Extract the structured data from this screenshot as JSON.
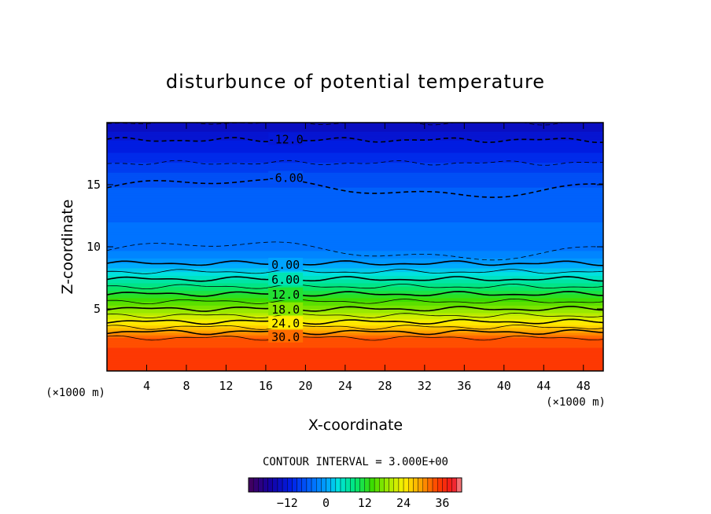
{
  "chart_data": {
    "type": "heatmap",
    "title": "disturbunce of potential temperature",
    "xlabel": "X-coordinate",
    "ylabel": "Z-coordinate",
    "x_unit_label": "(×1000 m)",
    "y_unit_label": "(×1000 m)",
    "xlim": [
      0,
      50
    ],
    "ylim": [
      0,
      20
    ],
    "x_ticks": [
      4,
      8,
      12,
      16,
      20,
      24,
      28,
      32,
      36,
      40,
      44,
      48
    ],
    "y_ticks": [
      5,
      10,
      15
    ],
    "contour_interval_text": "CONTOUR INTERVAL = 3.000E+00",
    "colorbar": {
      "min": -24,
      "max": 42,
      "ticks": [
        -12,
        0,
        12,
        24,
        36
      ]
    },
    "contour_labels": [
      {
        "text": "-12.0",
        "x": 18,
        "z": 18.7
      },
      {
        "text": "-6.00",
        "x": 18,
        "z": 15.6
      },
      {
        "text": "0.00",
        "x": 18,
        "z": 8.6
      },
      {
        "text": "6.00",
        "x": 18,
        "z": 7.4
      },
      {
        "text": "12.0",
        "x": 18,
        "z": 6.2
      },
      {
        "text": "18.0",
        "x": 18,
        "z": 5.0
      },
      {
        "text": "24.0",
        "x": 18,
        "z": 3.9
      },
      {
        "text": "30.0",
        "x": 18,
        "z": 2.8
      }
    ],
    "vertical_profile": [
      {
        "z": 0.0,
        "value": 36
      },
      {
        "z": 2.5,
        "value": 34
      },
      {
        "z": 3.0,
        "value": 31
      },
      {
        "z": 3.8,
        "value": 25
      },
      {
        "z": 4.8,
        "value": 19
      },
      {
        "z": 6.0,
        "value": 13
      },
      {
        "z": 7.2,
        "value": 7
      },
      {
        "z": 8.4,
        "value": 1
      },
      {
        "z": 9.2,
        "value": -2
      },
      {
        "z": 10.2,
        "value": -4
      },
      {
        "z": 12.0,
        "value": -4.5
      },
      {
        "z": 14.0,
        "value": -5.5
      },
      {
        "z": 15.5,
        "value": -6.5
      },
      {
        "z": 17.0,
        "value": -9.5
      },
      {
        "z": 18.6,
        "value": -12
      },
      {
        "z": 20.0,
        "value": -15
      }
    ]
  }
}
